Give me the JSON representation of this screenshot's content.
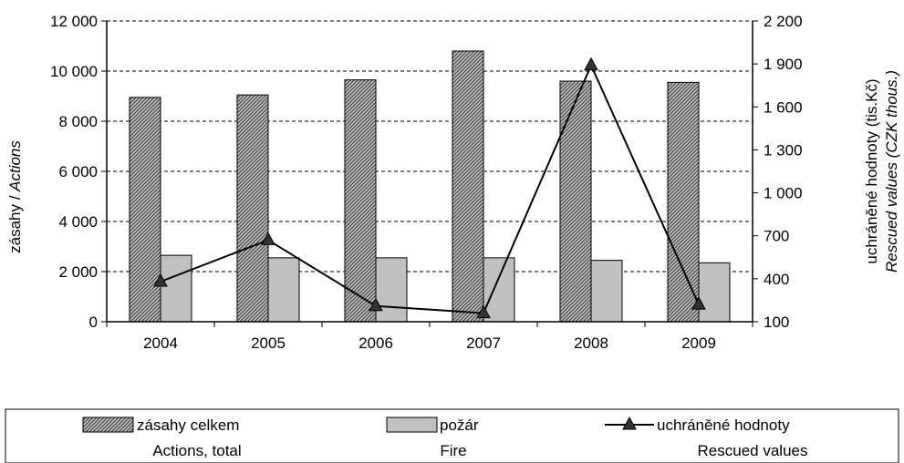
{
  "chart_data": {
    "type": "bar",
    "categories": [
      "2004",
      "2005",
      "2006",
      "2007",
      "2008",
      "2009"
    ],
    "series": [
      {
        "name": "zásahy celkem",
        "name_en": "Actions, total",
        "type": "bar",
        "axis": "left",
        "values": [
          8950,
          9050,
          9650,
          10800,
          9600,
          9550
        ],
        "color": "#8c8c8c"
      },
      {
        "name": "požár",
        "name_en": "Fire",
        "type": "bar",
        "axis": "left",
        "values": [
          2650,
          2550,
          2550,
          2550,
          2450,
          2350
        ],
        "color": "#c0c0c0"
      },
      {
        "name": "uchráněné hodnoty",
        "name_en": "Rescued values",
        "type": "line",
        "axis": "right",
        "marker": "triangle",
        "values": [
          380,
          670,
          210,
          160,
          1890,
          220
        ],
        "color": "#000000"
      }
    ],
    "y_left": {
      "label_cz": "zásahy / ",
      "label_en": "Actions",
      "ylim": [
        0,
        12000
      ],
      "ticks": [
        0,
        2000,
        4000,
        6000,
        8000,
        10000,
        12000
      ],
      "tick_labels": [
        "0",
        "2 000",
        "4 000",
        "6 000",
        "8 000",
        "10 000",
        "12 000"
      ]
    },
    "y_right": {
      "label_cz": "uchráněné hodnoty (tis.Kč)",
      "label_en": "Rescued values (CZK thous.)",
      "ylim": [
        100,
        2200
      ],
      "ticks": [
        100,
        400,
        700,
        1000,
        1300,
        1600,
        1900,
        2200
      ],
      "tick_labels": [
        "100",
        "400",
        "700",
        "1 000",
        "1 300",
        "1 600",
        "1 900",
        "2 200"
      ]
    },
    "grid": "horizontal-dashed",
    "legend_position": "bottom"
  }
}
